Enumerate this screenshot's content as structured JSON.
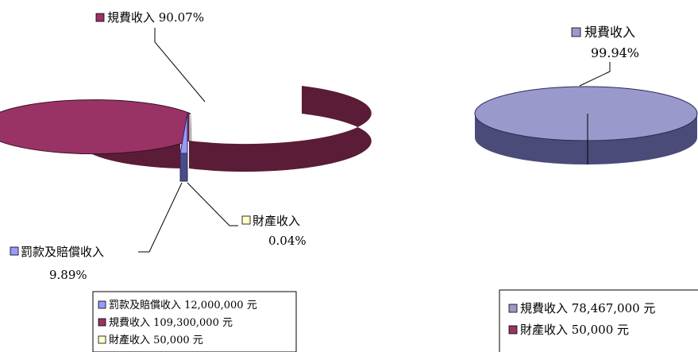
{
  "chart_data": [
    {
      "type": "pie",
      "three_d": true,
      "slices": [
        {
          "name": "罰款及賠償收入",
          "value": 12000000,
          "percent": 9.89,
          "color": "#9999ff",
          "dark": "#4b4b88"
        },
        {
          "name": "規費收入",
          "value": 109300000,
          "percent": 90.07,
          "color": "#993366",
          "dark": "#5a1c36"
        },
        {
          "name": "財產收入",
          "value": 50000,
          "percent": 0.04,
          "color": "#ffffcc",
          "dark": "#b8b88a"
        }
      ],
      "labels": {
        "fees": "規費收入 90.07%",
        "property_name": "財產收入",
        "property_pct": "0.04%",
        "fines_name": "罰款及賠償收入",
        "fines_pct": "9.89%"
      },
      "legend": {
        "placement": "bottom",
        "items": [
          {
            "text": "罰款及賠償收入 12,000,000 元",
            "color": "#9999ff"
          },
          {
            "text": "規費收入 109,300,000 元",
            "color": "#993366"
          },
          {
            "text": "財產收入 50,000 元",
            "color": "#ffffcc"
          }
        ]
      }
    },
    {
      "type": "pie",
      "three_d": true,
      "slices": [
        {
          "name": "規費收入",
          "value": 78467000,
          "percent": 99.94,
          "color": "#9999cc",
          "dark": "#4b4b7a"
        },
        {
          "name": "財產收入",
          "value": 50000,
          "percent": 0.06,
          "color": "#993366",
          "dark": "#5a1c36"
        }
      ],
      "labels": {
        "fees_name": "規費收入",
        "fees_pct": "99.94%"
      },
      "legend": {
        "placement": "bottom",
        "items": [
          {
            "text": "規費收入 78,467,000 元",
            "color": "#9999cc"
          },
          {
            "text": "財產收入 50,000 元",
            "color": "#993366"
          }
        ]
      }
    }
  ]
}
